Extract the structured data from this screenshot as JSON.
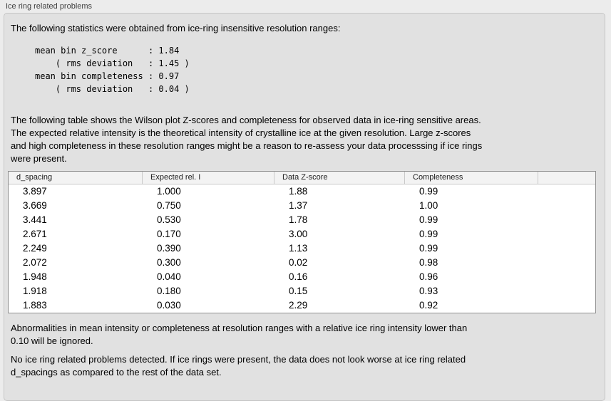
{
  "panel": {
    "title": "Ice ring related problems"
  },
  "intro": "The following statistics were obtained from ice-ring insensitive resolution ranges:",
  "stats_block": "mean bin z_score      : 1.84\n    ( rms deviation   : 1.45 )\nmean bin completeness : 0.97\n    ( rms deviation   : 0.04 )",
  "stats": {
    "mean_bin_z_score": "1.84",
    "z_score_rms_deviation": "1.45",
    "mean_bin_completeness": "0.97",
    "completeness_rms_deviation": "0.04"
  },
  "description": "The following table shows the Wilson plot Z-scores and completeness for observed data in ice-ring sensitive areas.\nThe expected relative intensity is the theoretical intensity of crystalline ice at the given resolution. Large z-scores\nand high completeness in these resolution ranges might be a reason to re-assess your data processsing if ice rings\nwere present.",
  "table": {
    "columns": [
      "d_spacing",
      "Expected rel. I",
      "Data Z-score",
      "Completeness",
      ""
    ],
    "rows": [
      [
        "3.897",
        "1.000",
        "1.88",
        "0.99"
      ],
      [
        "3.669",
        "0.750",
        "1.37",
        "1.00"
      ],
      [
        "3.441",
        "0.530",
        "1.78",
        "0.99"
      ],
      [
        "2.671",
        "0.170",
        "3.00",
        "0.99"
      ],
      [
        "2.249",
        "0.390",
        "1.13",
        "0.99"
      ],
      [
        "2.072",
        "0.300",
        "0.02",
        "0.98"
      ],
      [
        "1.948",
        "0.040",
        "0.16",
        "0.96"
      ],
      [
        "1.918",
        "0.180",
        "0.15",
        "0.93"
      ],
      [
        "1.883",
        "0.030",
        "2.29",
        "0.92"
      ]
    ]
  },
  "note_ignore": "Abnormalities in mean intensity or completeness at resolution ranges with a relative ice ring intensity lower than\n0.10 will be ignored.",
  "conclusion": "No ice ring related problems detected. If ice rings were present, the data does not look worse at ice ring related\nd_spacings as compared to the rest of the data set.",
  "colors": {
    "page_background": "#ececec",
    "panel_background": "#e1e1e1",
    "panel_border": "#c5c5c5",
    "table_border": "#8f8f8f",
    "table_header_background": "#f3f3f3",
    "table_body_background": "#ffffff",
    "text": "#000000"
  }
}
